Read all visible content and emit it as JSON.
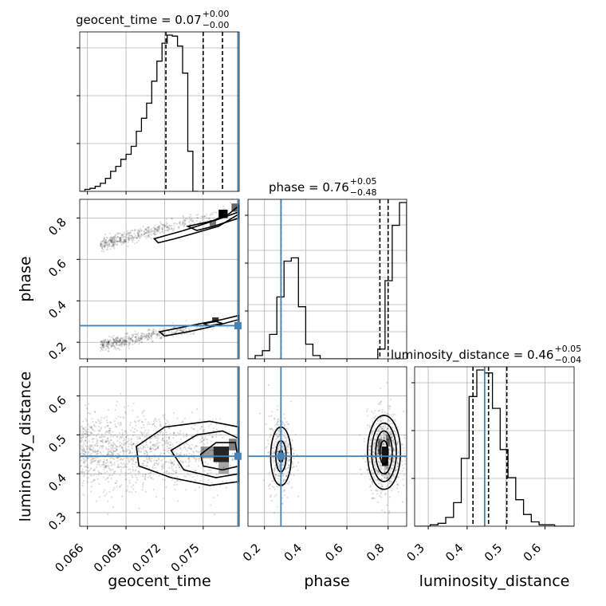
{
  "chart_data": {
    "type": "corner",
    "truth_color": "#4682b4",
    "histogram_color": "#000000",
    "parameters": [
      "geocent_time",
      "phase",
      "luminosity_distance"
    ],
    "truths": {
      "geocent_time": 0.0777,
      "phase": 0.28,
      "luminosity_distance": 0.445
    },
    "ranges": {
      "geocent_time": [
        0.0654,
        0.0778
      ],
      "phase": [
        0.12,
        0.89
      ],
      "luminosity_distance": [
        0.265,
        0.675
      ]
    },
    "ticks": {
      "geocent_time": {
        "values": [
          0.066,
          0.069,
          0.072,
          0.075
        ],
        "labels": [
          "0.066",
          "0.069",
          "0.072",
          "0.075"
        ]
      },
      "phase": {
        "values": [
          0.2,
          0.4,
          0.6,
          0.8
        ],
        "labels": [
          "0.2",
          "0.4",
          "0.6",
          "0.8"
        ]
      },
      "luminosity_distance": {
        "values": [
          0.3,
          0.4,
          0.5,
          0.6
        ],
        "labels": [
          "0.3",
          "0.4",
          "0.5",
          "0.6"
        ]
      }
    },
    "titles": {
      "geocent_time": {
        "text": "geocent_time = 0.07",
        "plus": "+0.00",
        "minus": "−0.00"
      },
      "phase": {
        "text": "phase = 0.76",
        "plus": "+0.05",
        "minus": "−0.48"
      },
      "luminosity_distance": {
        "text": "luminosity_distance = 0.46",
        "plus": "+0.05",
        "minus": "−0.04"
      }
    },
    "axis_labels": {
      "x": [
        "geocent_time",
        "phase",
        "luminosity_distance"
      ],
      "y": [
        "",
        "phase",
        "luminosity_distance"
      ]
    },
    "quantiles": {
      "geocent_time": [
        0.0721,
        0.075,
        0.0765
      ],
      "phase": [
        0.28,
        0.76,
        0.8
      ],
      "luminosity_distance": [
        0.415,
        0.455,
        0.502
      ]
    },
    "histograms": {
      "geocent_time": {
        "edges_start": 0.0654,
        "edges_step": 0.0004,
        "counts": [
          0,
          2,
          3,
          5,
          8,
          13,
          20,
          25,
          32,
          37,
          45,
          60,
          73,
          88,
          110,
          130,
          148,
          156,
          155,
          145,
          118,
          40,
          0
        ]
      },
      "phase": {
        "edges_start": 0.12,
        "edges_step": 0.035,
        "counts": [
          0,
          2,
          5,
          15,
          38,
          60,
          62,
          32,
          9,
          2,
          0,
          0,
          0,
          0,
          0,
          0,
          0,
          0,
          6,
          48,
          82,
          96,
          60,
          11
        ]
      },
      "luminosity_distance": {
        "edges_start": 0.265,
        "edges_step": 0.02,
        "counts": [
          0,
          0,
          1,
          2,
          6,
          16,
          46,
          88,
          106,
          104,
          80,
          52,
          33,
          18,
          8,
          3,
          1,
          1,
          0,
          0,
          0
        ]
      }
    },
    "grid": true
  }
}
